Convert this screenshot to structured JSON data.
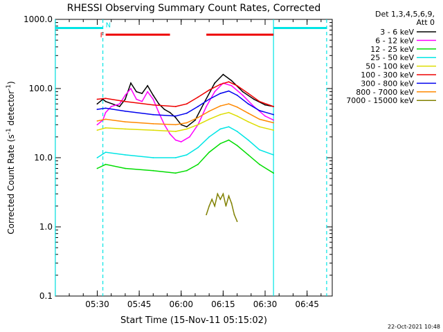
{
  "chart_data": {
    "type": "line",
    "title": "RHESSI Observing Summary Count Rates, Corrected",
    "xlabel": "Start Time (15-Nov-11 05:15:02)",
    "ylabel": "Corrected Count Rate (s",
    "ylabel_sup": "-1",
    "ylabel_mid": " detector",
    "ylabel_end": ")",
    "yscale": "log",
    "ylim": [
      0.1,
      1000
    ],
    "xlim": [
      "05:15:02",
      "06:54:00"
    ],
    "yticks": [
      "0.1",
      "1.0",
      "10.0",
      "100.0",
      "1000.0"
    ],
    "xticks": [
      "05:30",
      "05:45",
      "06:00",
      "06:15",
      "06:30",
      "06:45"
    ],
    "legend_header": [
      "Det 1,3,4,5,6,9,",
      "Att 0"
    ],
    "legend_position": "right-outside",
    "footer_date": "22-Oct-2021 10:48",
    "flags": {
      "F": {
        "label": "F",
        "color": "#ee0000",
        "segments": [
          [
            "05:33",
            "05:56"
          ],
          [
            "06:09",
            "06:33"
          ]
        ],
        "y_level": 600
      },
      "N": {
        "label": "N",
        "color": "#00e5e5",
        "segments": [
          [
            "05:15",
            "05:32"
          ],
          [
            "06:33",
            "06:52"
          ]
        ],
        "y_level": 750
      },
      "vlines_solid": [
        "05:15",
        "06:33"
      ],
      "vlines_dashed": [
        "05:32",
        "06:52"
      ]
    },
    "series": [
      {
        "name": "3 - 6 keV",
        "color": "#000000",
        "x": [
          "05:30",
          "05:32",
          "05:33",
          "05:38",
          "05:40",
          "05:42",
          "05:44",
          "05:46",
          "05:48",
          "05:50",
          "05:52",
          "05:54",
          "05:56",
          "05:58",
          "06:00",
          "06:02",
          "06:05",
          "06:08",
          "06:12",
          "06:15",
          "06:18",
          "06:22",
          "06:26",
          "06:30",
          "06:33"
        ],
        "y": [
          60,
          70,
          65,
          55,
          70,
          120,
          90,
          85,
          110,
          80,
          60,
          50,
          45,
          38,
          30,
          28,
          35,
          60,
          120,
          160,
          130,
          90,
          70,
          58,
          55
        ]
      },
      {
        "name": "6 - 12 keV",
        "color": "#ff00ff",
        "x": [
          "05:30",
          "05:32",
          "05:33",
          "05:35",
          "05:38",
          "05:40",
          "05:42",
          "05:44",
          "05:46",
          "05:48",
          "05:50",
          "05:52",
          "05:54",
          "05:56",
          "05:58",
          "06:00",
          "06:03",
          "06:06",
          "06:09",
          "06:12",
          "06:15",
          "06:18",
          "06:22",
          "06:26",
          "06:30",
          "06:33"
        ],
        "y": [
          30,
          35,
          45,
          55,
          60,
          80,
          100,
          70,
          65,
          90,
          70,
          45,
          30,
          22,
          18,
          17,
          20,
          30,
          55,
          90,
          120,
          110,
          80,
          55,
          40,
          35
        ]
      },
      {
        "name": "12 - 25 keV",
        "color": "#00dd00",
        "x": [
          "05:30",
          "05:33",
          "05:40",
          "05:50",
          "05:58",
          "06:02",
          "06:06",
          "06:10",
          "06:14",
          "06:17",
          "06:20",
          "06:24",
          "06:28",
          "06:33"
        ],
        "y": [
          7,
          8,
          7,
          6.5,
          6,
          6.5,
          8,
          12,
          16,
          18,
          15,
          11,
          8,
          6
        ]
      },
      {
        "name": "25 - 50 keV",
        "color": "#00e5e5",
        "x": [
          "05:30",
          "05:33",
          "05:40",
          "05:50",
          "05:58",
          "06:02",
          "06:06",
          "06:10",
          "06:14",
          "06:17",
          "06:20",
          "06:24",
          "06:28",
          "06:33"
        ],
        "y": [
          10,
          12,
          11,
          10,
          10,
          11,
          14,
          20,
          26,
          28,
          24,
          18,
          13,
          11
        ]
      },
      {
        "name": "50 - 100 keV",
        "color": "#dddd00",
        "x": [
          "05:30",
          "05:33",
          "05:40",
          "05:50",
          "05:58",
          "06:02",
          "06:06",
          "06:10",
          "06:14",
          "06:17",
          "06:20",
          "06:24",
          "06:28",
          "06:33"
        ],
        "y": [
          25,
          27,
          26,
          25,
          24,
          26,
          30,
          36,
          42,
          45,
          40,
          33,
          28,
          25
        ]
      },
      {
        "name": "100 - 300 keV",
        "color": "#ee0000",
        "x": [
          "05:30",
          "05:33",
          "05:40",
          "05:50",
          "05:58",
          "06:02",
          "06:06",
          "06:10",
          "06:14",
          "06:17",
          "06:20",
          "06:24",
          "06:28",
          "06:33"
        ],
        "y": [
          70,
          72,
          65,
          58,
          55,
          60,
          75,
          95,
          115,
          125,
          110,
          85,
          65,
          55
        ]
      },
      {
        "name": "300 - 800 keV",
        "color": "#0000ee",
        "x": [
          "05:30",
          "05:33",
          "05:40",
          "05:50",
          "05:58",
          "06:02",
          "06:06",
          "06:10",
          "06:14",
          "06:17",
          "06:20",
          "06:24",
          "06:28",
          "06:33"
        ],
        "y": [
          50,
          52,
          47,
          42,
          40,
          44,
          55,
          70,
          85,
          92,
          80,
          60,
          48,
          42
        ]
      },
      {
        "name": "800 - 7000 keV",
        "color": "#ff8800",
        "x": [
          "05:30",
          "05:33",
          "05:40",
          "05:50",
          "05:58",
          "06:02",
          "06:06",
          "06:10",
          "06:14",
          "06:17",
          "06:20",
          "06:24",
          "06:28",
          "06:33"
        ],
        "y": [
          34,
          36,
          33,
          31,
          30,
          32,
          38,
          47,
          56,
          60,
          54,
          44,
          36,
          32
        ]
      },
      {
        "name": "7000 - 15000 keV",
        "color": "#808000",
        "x": [
          "06:09",
          "06:10",
          "06:11",
          "06:12",
          "06:13",
          "06:14",
          "06:15",
          "06:16",
          "06:17",
          "06:18",
          "06:19",
          "06:20"
        ],
        "y": [
          1.5,
          2.0,
          2.5,
          2.0,
          3.0,
          2.5,
          3.0,
          2.0,
          2.8,
          2.2,
          1.5,
          1.2
        ]
      }
    ]
  }
}
